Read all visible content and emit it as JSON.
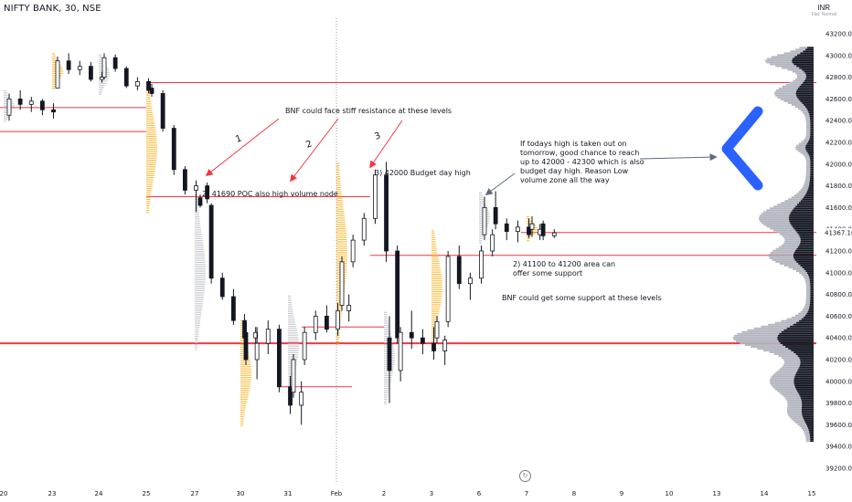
{
  "header": {
    "symbol": "NIFTY BANK, 30, NSE",
    "currency": "INR",
    "currency_sub": "Flat: Normal"
  },
  "colors": {
    "up": "#ffffff",
    "down": "#131722",
    "level_line": "#f23645",
    "arrow": "#f23645",
    "annotation_arrow": "#5d6b7d",
    "chevron": "#2962ff",
    "volume_profile": "#131722",
    "volume_profile_light": "#b2b5be",
    "session_profile": "#f7a600"
  },
  "annotations": {
    "resistance_note": "BNF could face stiff resistance at these levels",
    "poc_note": "2) 41690 POC also high volume node",
    "budget_note": "3) 42000 Budget day high",
    "breakout_note": "If todays high is taken out on\ntomorrow, good chance to reach\nup to 42000 - 42300 which is also\nbudget day high. Reason Low\nvolume zone all the way",
    "support_area_note": "2) 41100 to 41200 area can\noffer some support",
    "support_note": "BNF could  get some support at these levels",
    "num1": "1",
    "num2": "2",
    "num3": "3",
    "replay_icon": "replay-icon"
  },
  "chart_data": {
    "type": "candlestick",
    "title": "NIFTY BANK, 30, NSE",
    "currency": "INR",
    "ylim": [
      39200,
      43300
    ],
    "y_ticks": [
      39200,
      39400,
      39600,
      39800,
      40000,
      40200,
      40400,
      40600,
      40800,
      41000,
      41200,
      41400,
      41600,
      41800,
      42000,
      42200,
      42400,
      42600,
      42800,
      43000,
      43200
    ],
    "last_price": "41367.10",
    "x_ticks": [
      "20",
      "23",
      "24",
      "25",
      "27",
      "30",
      "31",
      "Feb",
      "2",
      "3",
      "6",
      "7",
      "8",
      "9",
      "10",
      "13",
      "14",
      "15"
    ],
    "levels": [
      42750,
      42520,
      42300,
      41700,
      41370,
      41160,
      40500,
      40350,
      39950
    ],
    "sessions": [
      {
        "label": "20",
        "candles": [
          [
            42450,
            42650,
            42400,
            42600
          ],
          [
            42600,
            42680,
            42500,
            42550
          ],
          [
            42550,
            42620,
            42480,
            42580
          ],
          [
            42580,
            42600,
            42450,
            42500
          ],
          [
            42500,
            42560,
            42420,
            42480
          ]
        ]
      },
      {
        "label": "23",
        "candles": [
          [
            42700,
            42990,
            42700,
            42950
          ],
          [
            42950,
            43020,
            42830,
            42870
          ],
          [
            42870,
            42950,
            42820,
            42900
          ],
          [
            42900,
            42940,
            42760,
            42780
          ],
          [
            42780,
            42850,
            42750,
            42800
          ]
        ]
      },
      {
        "label": "24",
        "candles": [
          [
            42800,
            43020,
            42780,
            42980
          ],
          [
            42980,
            43010,
            42850,
            42880
          ],
          [
            42880,
            42900,
            42700,
            42720
          ],
          [
            42720,
            42800,
            42680,
            42760
          ],
          [
            42760,
            42790,
            42650,
            42680
          ]
        ]
      },
      {
        "label": "25",
        "candles": [
          [
            42700,
            42740,
            42620,
            42650
          ],
          [
            42650,
            42680,
            42300,
            42330
          ],
          [
            42330,
            42360,
            41900,
            41950
          ],
          [
            41950,
            41980,
            41720,
            41760
          ],
          [
            41760,
            41850,
            41560,
            41800
          ],
          [
            41800,
            41830,
            41640,
            41680
          ]
        ]
      },
      {
        "label": "27",
        "candles": [
          [
            41690,
            41720,
            41600,
            41620
          ],
          [
            41620,
            41640,
            40900,
            40950
          ],
          [
            40950,
            41000,
            40750,
            40780
          ],
          [
            40780,
            40850,
            40520,
            40560
          ],
          [
            40560,
            40620,
            40350,
            40400
          ],
          [
            40400,
            40500,
            40300,
            40450
          ]
        ]
      },
      {
        "label": "30",
        "candles": [
          [
            40450,
            40480,
            40150,
            40200
          ],
          [
            40200,
            40500,
            40020,
            40350
          ],
          [
            40350,
            40560,
            40250,
            40480
          ],
          [
            40480,
            40520,
            39900,
            39950
          ],
          [
            39950,
            40050,
            39700,
            39780
          ],
          [
            39780,
            40000,
            39600,
            39900
          ]
        ]
      },
      {
        "label": "31",
        "candles": [
          [
            39900,
            40250,
            39850,
            40200
          ],
          [
            40200,
            40500,
            40150,
            40450
          ],
          [
            40450,
            40650,
            40380,
            40600
          ],
          [
            40600,
            40700,
            40450,
            40480
          ],
          [
            40480,
            40720,
            40420,
            40650
          ],
          [
            40650,
            40800,
            40550,
            40700
          ]
        ]
      },
      {
        "label": "Feb",
        "candles": [
          [
            40700,
            41150,
            40650,
            41100
          ],
          [
            41100,
            41350,
            41050,
            41300
          ],
          [
            41300,
            41550,
            41250,
            41500
          ],
          [
            41500,
            41950,
            41450,
            41900
          ],
          [
            41900,
            42020,
            41100,
            41200
          ],
          [
            41200,
            41250,
            40350,
            40400
          ]
        ]
      },
      {
        "label": "2",
        "candles": [
          [
            40400,
            40600,
            39800,
            40100
          ],
          [
            40100,
            40500,
            40000,
            40450
          ],
          [
            40450,
            40650,
            40300,
            40400
          ],
          [
            40400,
            40480,
            40250,
            40350
          ],
          [
            40350,
            40500,
            40200,
            40280
          ],
          [
            40280,
            40420,
            40150,
            40380
          ]
        ]
      },
      {
        "label": "3",
        "candles": [
          [
            40400,
            40600,
            40350,
            40550
          ],
          [
            40550,
            41200,
            40500,
            41150
          ],
          [
            41150,
            41250,
            40850,
            40900
          ],
          [
            40900,
            41000,
            40750,
            40950
          ],
          [
            40950,
            41250,
            40900,
            41200
          ],
          [
            41200,
            41400,
            41150,
            41350
          ]
        ]
      },
      {
        "label": "6",
        "candles": [
          [
            41350,
            41700,
            41300,
            41600
          ],
          [
            41600,
            41750,
            41400,
            41450
          ],
          [
            41450,
            41500,
            41300,
            41380
          ],
          [
            41380,
            41480,
            41280,
            41420
          ],
          [
            41420,
            41500,
            41320,
            41350
          ],
          [
            41350,
            41450,
            41300,
            41400
          ]
        ]
      },
      {
        "label": "7",
        "candles": [
          [
            41400,
            41520,
            41330,
            41450
          ],
          [
            41450,
            41480,
            41300,
            41340
          ],
          [
            41340,
            41400,
            41320,
            41367
          ]
        ]
      }
    ]
  }
}
